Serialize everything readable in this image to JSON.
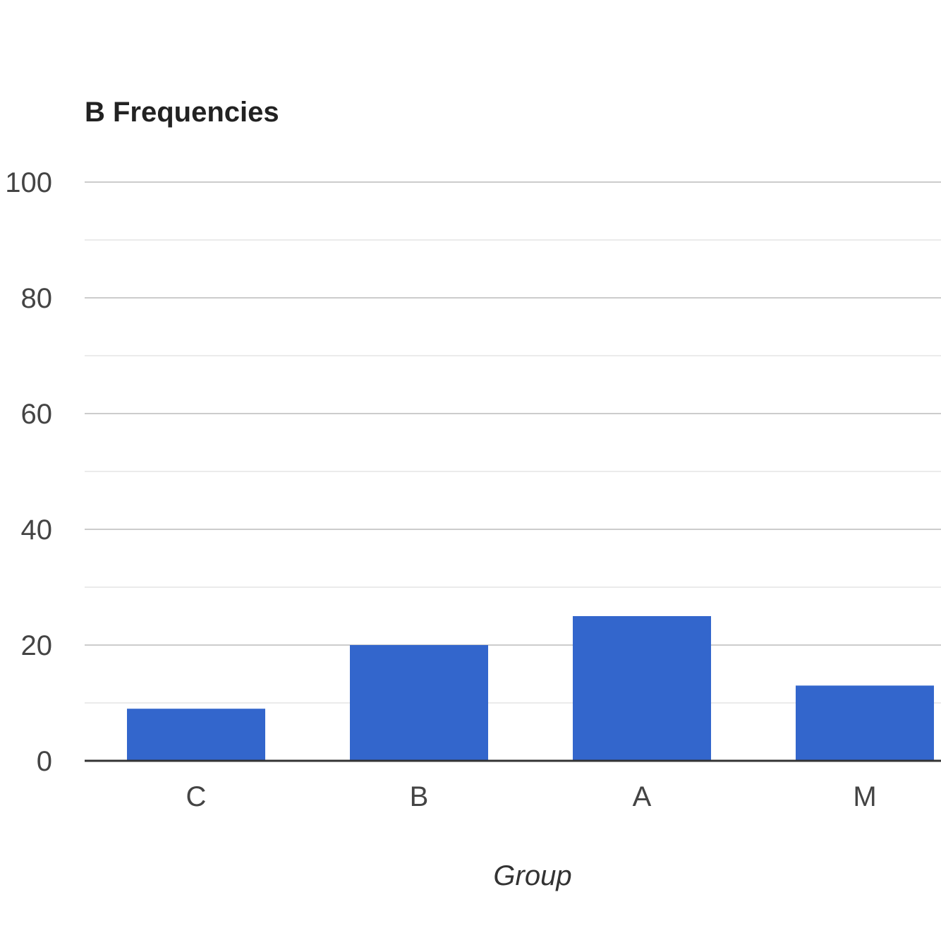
{
  "chart_data": {
    "type": "bar",
    "title": "B Frequencies",
    "xlabel": "Group",
    "ylabel": "",
    "categories": [
      "C",
      "B",
      "A",
      "M"
    ],
    "values": [
      9,
      20,
      25,
      13
    ],
    "ylim": [
      0,
      100
    ],
    "yticks": [
      "0",
      "20",
      "40",
      "60",
      "80",
      "100"
    ],
    "grid": true,
    "minor_grid": true,
    "legend": "none",
    "bar_color": "#3366cc",
    "gridline_color": "#cccccc",
    "minor_gridline_color": "#ebebeb",
    "baseline_color": "#333333"
  }
}
